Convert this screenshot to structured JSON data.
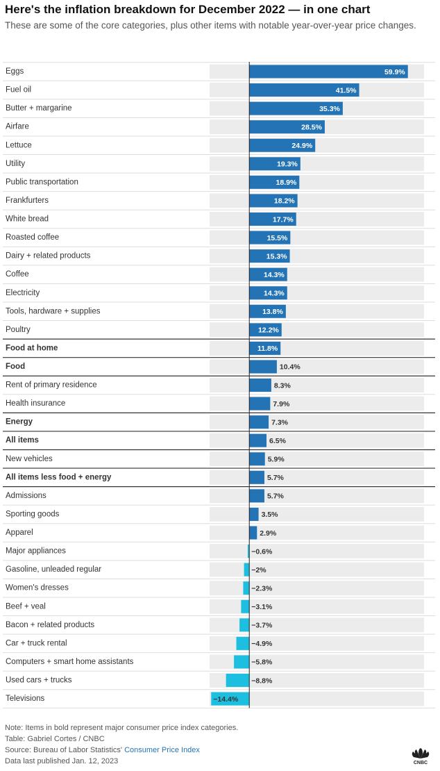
{
  "chart_data": {
    "type": "hbar",
    "title": "Here's the inflation breakdown for December 2022 — in one chart",
    "subtitle": "These are some of the core categories, plus other items with notable year-over-year price changes.",
    "categories": [
      "Eggs",
      "Fuel oil",
      "Butter + margarine",
      "Airfare",
      "Lettuce",
      "Utility",
      "Public transportation",
      "Frankfurters",
      "White bread",
      "Roasted coffee",
      "Dairy + related products",
      "Coffee",
      "Electricity",
      "Tools, hardware + supplies",
      "Poultry",
      "Food at home",
      "Food",
      "Rent of primary residence",
      "Health insurance",
      "Energy",
      "All items",
      "New vehicles",
      "All items less food + energy",
      "Admissions",
      "Sporting goods",
      "Apparel",
      "Major appliances",
      "Gasoline, unleaded regular",
      "Women's dresses",
      "Beef + veal",
      "Bacon + related products",
      "Car + truck rental",
      "Computers + smart home assistants",
      "Used cars + trucks",
      "Televisions"
    ],
    "values": [
      59.9,
      41.5,
      35.3,
      28.5,
      24.9,
      19.3,
      18.9,
      18.2,
      17.7,
      15.5,
      15.3,
      14.3,
      14.3,
      13.8,
      12.2,
      11.8,
      10.4,
      8.3,
      7.9,
      7.3,
      6.5,
      5.9,
      5.7,
      5.7,
      3.5,
      2.9,
      -0.6,
      -2,
      -2.3,
      -3.1,
      -3.7,
      -4.9,
      -5.8,
      -8.8,
      -14.4
    ],
    "value_labels": [
      "59.9%",
      "41.5%",
      "35.3%",
      "28.5%",
      "24.9%",
      "19.3%",
      "18.9%",
      "18.2%",
      "17.7%",
      "15.5%",
      "15.3%",
      "14.3%",
      "14.3%",
      "13.8%",
      "12.2%",
      "11.8%",
      "10.4%",
      "8.3%",
      "7.9%",
      "7.3%",
      "6.5%",
      "5.9%",
      "5.7%",
      "5.7%",
      "3.5%",
      "2.9%",
      "−0.6%",
      "−2%",
      "−2.3%",
      "−3.1%",
      "−3.7%",
      "−4.9%",
      "−5.8%",
      "−8.8%",
      "−14.4%"
    ],
    "bold": [
      false,
      false,
      false,
      false,
      false,
      false,
      false,
      false,
      false,
      false,
      false,
      false,
      false,
      false,
      false,
      true,
      true,
      false,
      false,
      true,
      true,
      false,
      true,
      false,
      false,
      false,
      false,
      false,
      false,
      false,
      false,
      false,
      false,
      false,
      false
    ],
    "color": "#2474b5",
    "negative_color": "#1dbfe0",
    "xlim": [
      -15,
      66
    ],
    "note": "Note: Items in bold represent major consumer price index categories.",
    "credit": "Table: Gabriel Cortes / CNBC",
    "source": "Source: Bureau of Labor Statistics' ",
    "source_link": "Consumer Price Index",
    "published": "Data last published Jan. 12, 2023",
    "logo": "CNBC"
  }
}
